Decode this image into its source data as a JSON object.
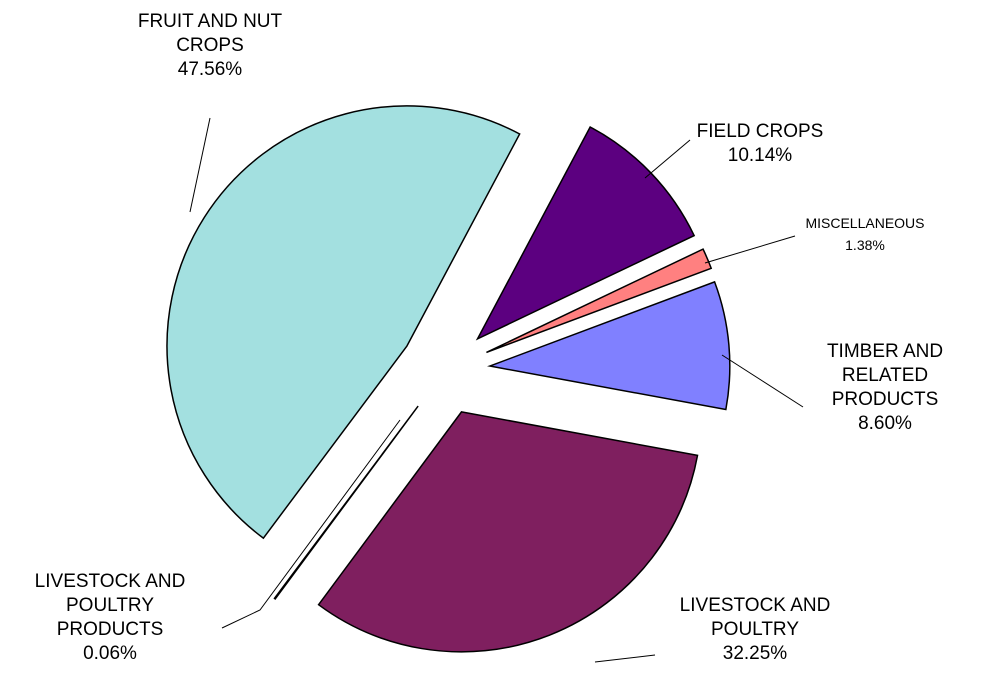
{
  "chart_data": {
    "type": "pie",
    "categories": [
      "FIELD CROPS",
      "MISCELLANEOUS",
      "TIMBER AND RELATED PRODUCTS",
      "LIVESTOCK AND POULTRY",
      "LIVESTOCK AND POULTRY PRODUCTS",
      "FRUIT AND NUT CROPS"
    ],
    "values": [
      10.14,
      1.38,
      8.6,
      32.25,
      0.06,
      47.56
    ],
    "value_labels": [
      "10.14%",
      "1.38%",
      "8.60%",
      "32.25%",
      "0.06%",
      "47.56%"
    ],
    "colors": [
      "#5c0080",
      "#ff8080",
      "#8080ff",
      "#7f1f5f",
      "#ffffcc",
      "#a3e0e0"
    ],
    "exploded": true
  }
}
